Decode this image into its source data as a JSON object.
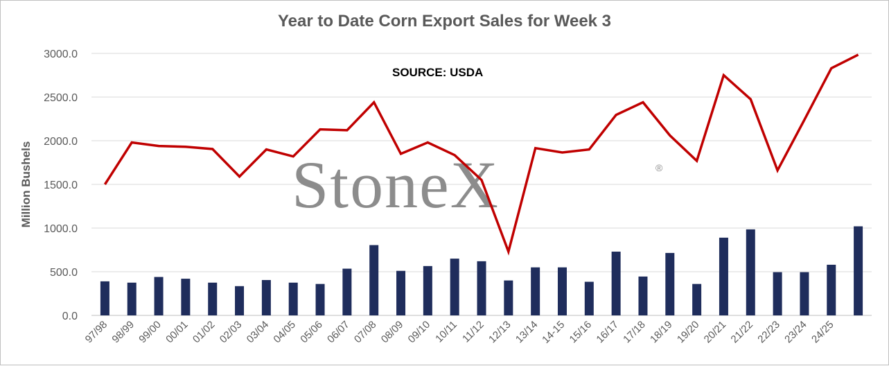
{
  "chart_data": {
    "type": "bar+line",
    "title": "Year to Date Corn Export Sales for Week 3",
    "annotation": "SOURCE: USDA",
    "watermark": "StoneX",
    "watermark_mark": "®",
    "ylabel": "Million Bushels",
    "ylim": [
      0,
      3000
    ],
    "yticks": [
      "0.0",
      "500.0",
      "1000.0",
      "1500.0",
      "2000.0",
      "2500.0",
      "3000.0"
    ],
    "categories": [
      "97/98",
      "98/99",
      "99/00",
      "00/01",
      "01/02",
      "02/03",
      "03/04",
      "04/05",
      "05/06",
      "06/07",
      "07/08",
      "08/09",
      "09/10",
      "10/11",
      "11/12",
      "12/13",
      "13/14",
      "14-15",
      "15/16",
      "16/17",
      "17/18",
      "18/19",
      "19/20",
      "20/21",
      "21/22",
      "22/23",
      "23/24",
      "24/25",
      ""
    ],
    "series": [
      {
        "type": "bar",
        "color": "#1f2d5c",
        "values": [
          390,
          375,
          440,
          420,
          375,
          335,
          405,
          375,
          360,
          535,
          805,
          510,
          565,
          650,
          620,
          400,
          550,
          550,
          385,
          730,
          445,
          715,
          360,
          890,
          985,
          495,
          495,
          580,
          1020
        ]
      },
      {
        "type": "line",
        "color": "#c00000",
        "values": [
          1500,
          1980,
          1940,
          1930,
          1905,
          1590,
          1900,
          1820,
          2130,
          2120,
          2440,
          1850,
          1980,
          1835,
          1550,
          730,
          1915,
          1865,
          1900,
          2295,
          2440,
          2060,
          1770,
          2750,
          2475,
          1660,
          2240,
          2830,
          2985
        ]
      }
    ],
    "grid": true
  }
}
